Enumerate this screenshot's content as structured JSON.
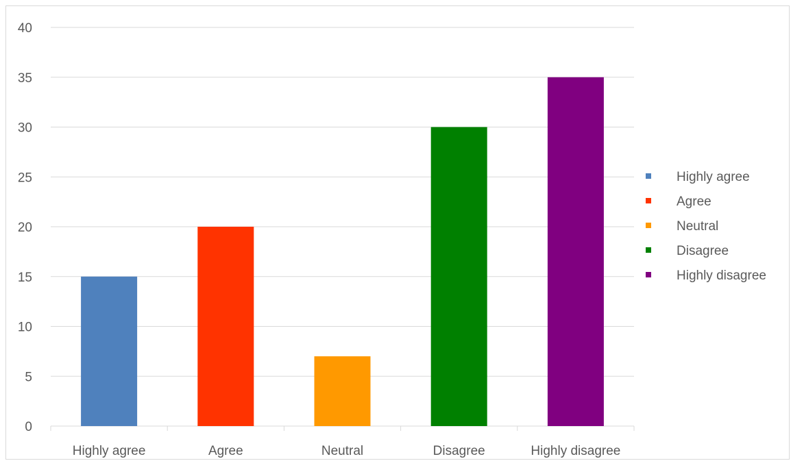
{
  "chart_data": {
    "type": "bar",
    "title": "",
    "xlabel": "",
    "ylabel": "",
    "categories": [
      "Highly agree",
      "Agree",
      "Neutral",
      "Disagree",
      "Highly disagree"
    ],
    "values": [
      15,
      20,
      7,
      30,
      35
    ],
    "colors": [
      "#4f81bd",
      "#ff3300",
      "#ff9900",
      "#008000",
      "#800080"
    ],
    "ylim": [
      0,
      40
    ],
    "yticks": [
      0,
      5,
      10,
      15,
      20,
      25,
      30,
      35,
      40
    ],
    "grid": true,
    "legend": {
      "position": "right",
      "entries": [
        "Highly agree",
        "Agree",
        "Neutral",
        "Disagree",
        "Highly disagree"
      ]
    }
  }
}
